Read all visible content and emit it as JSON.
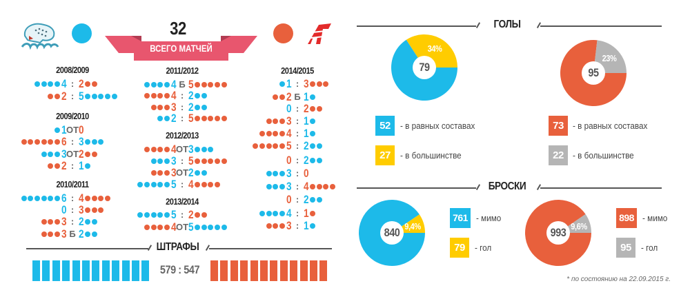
{
  "colors": {
    "barys": "#1DBAE9",
    "avangard": "#E8603C",
    "yellow": "#FFCC00",
    "gray": "#B5B5B5",
    "ribbon": "#E8566E",
    "ribbon_dark": "#C8425A"
  },
  "teams": {
    "barys": {
      "logo_text": "барыс",
      "icon": "barys-snow-leopard-logo"
    },
    "avangard": {
      "logo_text": "A",
      "icon": "avangard-logo"
    }
  },
  "header": {
    "total": "32",
    "total_label": "ВСЕГО МАТЧЕЙ"
  },
  "columns": [
    [
      {
        "title": "2008/2009",
        "games": [
          {
            "l": "4",
            "lt": "barys",
            "sep": ":",
            "r": "2",
            "rt": "avangard"
          },
          {
            "l": "2",
            "lt": "avangard",
            "sep": ":",
            "r": "5",
            "rt": "barys"
          }
        ]
      },
      {
        "title": "2009/2010",
        "games": [
          {
            "l": "1",
            "lt": "barys",
            "sep": "ОТ",
            "r": "0",
            "rt": "avangard"
          },
          {
            "l": "6",
            "lt": "avangard",
            "sep": ":",
            "r": "3",
            "rt": "barys"
          },
          {
            "l": "3",
            "lt": "barys",
            "sep": "ОТ",
            "r": "2",
            "rt": "avangard"
          },
          {
            "l": "2",
            "lt": "avangard",
            "sep": ":",
            "r": "1",
            "rt": "barys"
          }
        ]
      },
      {
        "title": "2010/2011",
        "games": [
          {
            "l": "6",
            "lt": "barys",
            "sep": ":",
            "r": "4",
            "rt": "avangard"
          },
          {
            "l": "0",
            "lt": "barys",
            "sep": ":",
            "r": "3",
            "rt": "avangard"
          },
          {
            "l": "3",
            "lt": "avangard",
            "sep": ":",
            "r": "2",
            "rt": "barys"
          },
          {
            "l": "3",
            "lt": "avangard",
            "sep": "Б",
            "r": "2",
            "rt": "barys"
          }
        ]
      }
    ],
    [
      {
        "title": "2011/2012",
        "games": [
          {
            "l": "4",
            "lt": "barys",
            "sep": "Б",
            "r": "5",
            "rt": "avangard"
          },
          {
            "l": "4",
            "lt": "avangard",
            "sep": ":",
            "r": "2",
            "rt": "barys"
          },
          {
            "l": "3",
            "lt": "avangard",
            "sep": ":",
            "r": "2",
            "rt": "barys"
          },
          {
            "l": "2",
            "lt": "barys",
            "sep": ":",
            "r": "5",
            "rt": "avangard"
          }
        ]
      },
      {
        "title": "2012/2013",
        "games": [
          {
            "l": "4",
            "lt": "avangard",
            "sep": "ОТ",
            "r": "3",
            "rt": "barys"
          },
          {
            "l": "3",
            "lt": "barys",
            "sep": ":",
            "r": "5",
            "rt": "avangard"
          },
          {
            "l": "3",
            "lt": "avangard",
            "sep": "ОТ",
            "r": "2",
            "rt": "barys"
          },
          {
            "l": "5",
            "lt": "barys",
            "sep": ":",
            "r": "4",
            "rt": "avangard"
          }
        ]
      },
      {
        "title": "2013/2014",
        "games": [
          {
            "l": "5",
            "lt": "barys",
            "sep": ":",
            "r": "2",
            "rt": "avangard"
          },
          {
            "l": "4",
            "lt": "avangard",
            "sep": "ОТ",
            "r": "5",
            "rt": "barys"
          }
        ]
      }
    ],
    [
      {
        "title": "2014/2015",
        "games": [
          {
            "l": "1",
            "lt": "barys",
            "sep": ":",
            "r": "3",
            "rt": "avangard"
          },
          {
            "l": "2",
            "lt": "avangard",
            "sep": "Б",
            "r": "1",
            "rt": "barys"
          },
          {
            "l": "0",
            "lt": "barys",
            "sep": ":",
            "r": "2",
            "rt": "avangard"
          },
          {
            "l": "3",
            "lt": "avangard",
            "sep": ":",
            "r": "1",
            "rt": "barys"
          },
          {
            "l": "4",
            "lt": "avangard",
            "sep": ":",
            "r": "1",
            "rt": "barys"
          },
          {
            "l": "5",
            "lt": "avangard",
            "sep": ":",
            "r": "2",
            "rt": "barys"
          },
          {
            "l": "0",
            "lt": "avangard",
            "sep": ":",
            "r": "2",
            "rt": "barys"
          },
          {
            "l": "3",
            "lt": "barys",
            "sep": ":",
            "r": "0",
            "rt": "avangard"
          },
          {
            "l": "3",
            "lt": "barys",
            "sep": ":",
            "r": "4",
            "rt": "avangard"
          },
          {
            "l": "0",
            "lt": "avangard",
            "sep": ":",
            "r": "2",
            "rt": "barys"
          },
          {
            "l": "4",
            "lt": "barys",
            "sep": ":",
            "r": "1",
            "rt": "avangard"
          },
          {
            "l": "3",
            "lt": "avangard",
            "sep": ":",
            "r": "1",
            "rt": "barys"
          }
        ]
      }
    ]
  ],
  "penalties": {
    "title": "ШТРАФЫ",
    "score": "579 : 547",
    "barys": 579,
    "avangard": 547
  },
  "goals": {
    "title": "ГОЛЫ"
  },
  "shots": {
    "title": "БРОСКИ"
  },
  "chart_data": [
    {
      "type": "pie",
      "team": "barys",
      "center_label": "79",
      "slice_label": "34%",
      "slices": [
        {
          "label": "в равных составах",
          "value": 52,
          "color": "#1DBAE9"
        },
        {
          "label": "в большинстве",
          "value": 27,
          "color": "#FFCC00"
        }
      ],
      "legend": [
        {
          "value": "52",
          "text": "- в равных составах"
        },
        {
          "value": "27",
          "text": "- в большинстве"
        }
      ]
    },
    {
      "type": "pie",
      "team": "avangard",
      "center_label": "95",
      "slice_label": "23%",
      "slices": [
        {
          "label": "в равных составах",
          "value": 73,
          "color": "#E8603C"
        },
        {
          "label": "в большинстве",
          "value": 22,
          "color": "#B5B5B5"
        }
      ],
      "legend": [
        {
          "value": "73",
          "text": "- в равных составах"
        },
        {
          "value": "22",
          "text": "- в большинстве"
        }
      ]
    },
    {
      "type": "pie",
      "team": "barys",
      "center_label": "840",
      "slice_label": "9,4%",
      "slices": [
        {
          "label": "мимо",
          "value": 761,
          "color": "#1DBAE9"
        },
        {
          "label": "гол",
          "value": 79,
          "color": "#FFCC00"
        }
      ],
      "legend": [
        {
          "value": "761",
          "text": "- мимо"
        },
        {
          "value": "79",
          "text": "- гол"
        }
      ]
    },
    {
      "type": "pie",
      "team": "avangard",
      "center_label": "993",
      "slice_label": "9,6%",
      "slices": [
        {
          "label": "мимо",
          "value": 898,
          "color": "#E8603C"
        },
        {
          "label": "гол",
          "value": 95,
          "color": "#B5B5B5"
        }
      ],
      "legend": [
        {
          "value": "898",
          "text": "- мимо"
        },
        {
          "value": "95",
          "text": "- гол"
        }
      ]
    }
  ],
  "footnote": "* по состоянию на 22.09.2015 г."
}
